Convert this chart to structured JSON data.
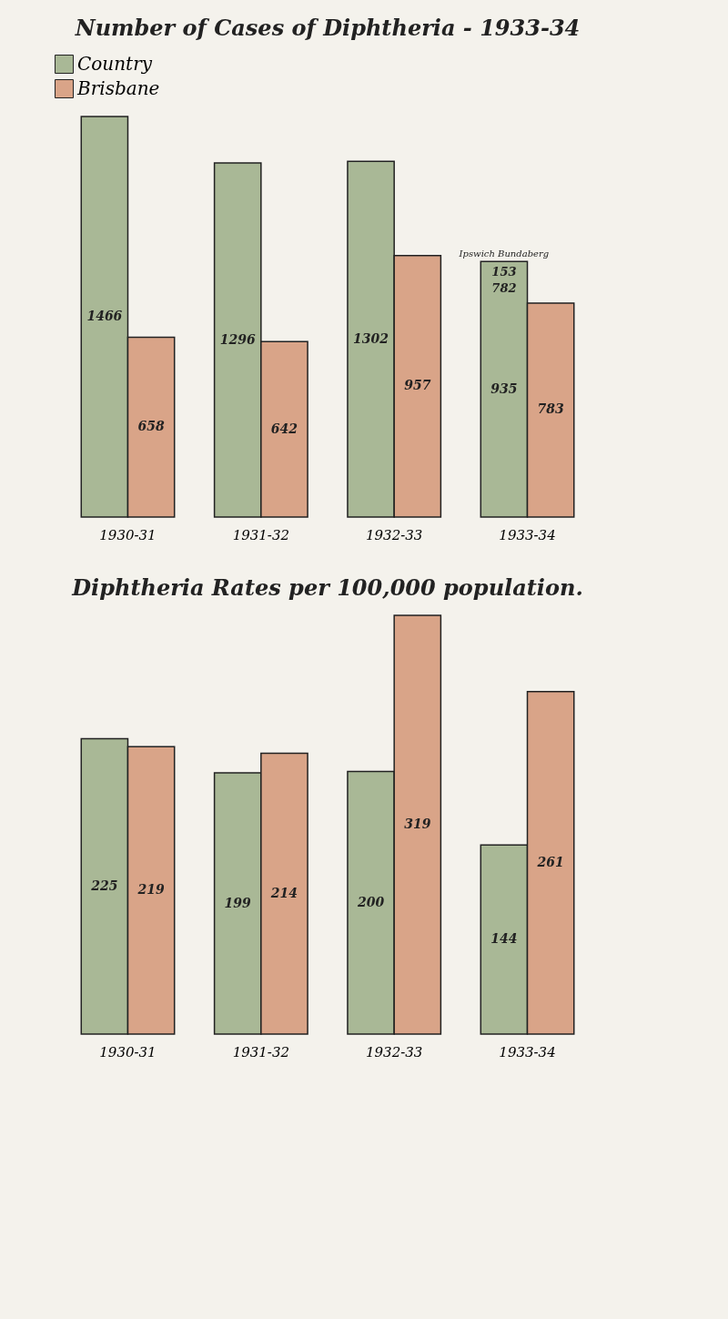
{
  "chart_data": [
    {
      "type": "bar",
      "title": "Number of Cases of Diphtheria - 1933-34",
      "categories": [
        "1930-31",
        "1931-32",
        "1932-33",
        "1933-34"
      ],
      "series": [
        {
          "name": "Country",
          "color": "#a9b896",
          "values": [
            1466,
            1296,
            1302,
            935
          ]
        },
        {
          "name": "Brisbane",
          "color": "#d9a488",
          "values": [
            658,
            642,
            957,
            783
          ]
        }
      ],
      "data_labels": true,
      "legend": "top",
      "annotations": [
        {
          "text": "Ipswich Bundaberg",
          "x": "1933-34",
          "y": 935
        },
        {
          "text": "153",
          "x": "1933-34",
          "y": 935
        },
        {
          "text": "782",
          "x": "1933-34",
          "y": 935
        }
      ]
    },
    {
      "type": "bar",
      "title": "Diphtheria Rates per 100,000 population.",
      "categories": [
        "1930-31",
        "1931-32",
        "1932-33",
        "1933-34"
      ],
      "series": [
        {
          "color": "#a9b896",
          "values": [
            225,
            199,
            200,
            144
          ]
        },
        {
          "color": "#d9a488",
          "values": [
            219,
            214,
            319,
            261
          ]
        }
      ],
      "data_labels": true
    }
  ]
}
